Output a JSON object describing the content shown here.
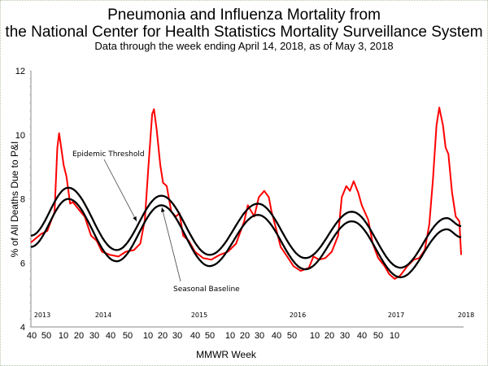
{
  "chart_data": {
    "type": "line",
    "title": "Pneumonia and Influenza Mortality from",
    "title_line2": "the National Center for Health Statistics Mortality Surveillance System",
    "subtitle": "Data through the week ending April 14, 2018, as of May 3, 2018",
    "xlabel": "MMWR Week",
    "ylabel": "% of All Deaths Due to P&I",
    "ylim": [
      4,
      12
    ],
    "y_ticks": [
      "12",
      "10",
      "8",
      "6",
      "4"
    ],
    "x_unit": "weeks since 2013 week 40",
    "x_range": [
      0,
      236
    ],
    "x_ticks": [
      "40",
      "50",
      "10",
      "20",
      "30",
      "40",
      "50",
      "10",
      "20",
      "30",
      "40",
      "50",
      "10",
      "20",
      "30",
      "40",
      "50",
      "10",
      "20",
      "30",
      "40",
      "50",
      "10"
    ],
    "year_labels": [
      "2013",
      "2014",
      "2015",
      "2016",
      "2017",
      "2018"
    ],
    "grid": false,
    "annotations": [
      "Epidemic Threshold",
      "Seasonal Baseline"
    ],
    "series": [
      {
        "name": "P&I Mortality",
        "color": "#ff0000",
        "x": [
          0,
          5.5,
          9,
          13,
          14.5,
          15.5,
          18,
          19.5,
          21.5,
          23,
          26.5,
          29.5,
          33,
          36,
          39,
          43.5,
          48,
          52,
          56.5,
          60,
          62.5,
          64.5,
          66.5,
          67.5,
          69,
          71,
          72.5,
          74.5,
          77,
          79.5,
          81.5,
          83.5,
          86.5,
          90,
          94.5,
          99,
          103.5,
          108,
          112.5,
          117,
          119,
          122.5,
          125,
          128,
          130.5,
          132,
          135,
          137,
          140,
          144,
          148,
          152.5,
          155,
          158,
          161.5,
          165,
          168.5,
          170.5,
          173,
          175,
          177,
          179.5,
          181.5,
          185,
          187.5,
          190.5,
          194,
          196.5,
          199.5,
          202.5,
          206.5,
          210,
          213,
          216,
          218.5,
          220.5,
          222.5,
          224,
          226,
          227.5,
          229,
          231,
          233,
          235,
          236
        ],
        "values": [
          6.64,
          6.9,
          7.0,
          7.6,
          9.6,
          10.05,
          9.05,
          8.7,
          7.85,
          7.9,
          7.65,
          7.45,
          6.85,
          6.7,
          6.35,
          6.25,
          6.2,
          6.35,
          6.4,
          6.6,
          7.35,
          9.05,
          10.65,
          10.8,
          10.15,
          9.05,
          8.5,
          8.4,
          7.6,
          7.45,
          7.55,
          6.85,
          6.7,
          6.35,
          6.15,
          6.1,
          6.25,
          6.35,
          6.6,
          7.3,
          7.8,
          7.45,
          8.05,
          8.25,
          8.05,
          7.6,
          6.95,
          6.5,
          6.25,
          5.9,
          5.75,
          5.85,
          6.2,
          6.1,
          6.15,
          6.35,
          6.85,
          8.05,
          8.4,
          8.25,
          8.55,
          8.2,
          7.8,
          7.35,
          6.6,
          6.15,
          5.9,
          5.65,
          5.5,
          5.6,
          5.9,
          6.1,
          6.15,
          6.4,
          7.2,
          8.6,
          10.3,
          10.85,
          10.3,
          9.6,
          9.4,
          8.2,
          7.45,
          7.3,
          6.25
        ]
      },
      {
        "name": "Epidemic Threshold",
        "color": "#000000",
        "x": [
          0,
          20.5,
          47,
          71.5,
          98,
          124.5,
          150.5,
          176,
          202.7,
          228,
          236
        ],
        "values": [
          6.85,
          8.35,
          6.4,
          8.1,
          6.25,
          7.85,
          6.15,
          7.6,
          5.85,
          7.4,
          7.15
        ]
      },
      {
        "name": "Seasonal Baseline",
        "color": "#000000",
        "x": [
          0,
          20.5,
          47,
          71.5,
          98,
          124.5,
          150.5,
          176,
          202.7,
          228,
          236
        ],
        "values": [
          6.5,
          8.0,
          6.05,
          7.8,
          5.9,
          7.5,
          5.8,
          7.3,
          5.55,
          7.05,
          6.8
        ]
      }
    ]
  }
}
